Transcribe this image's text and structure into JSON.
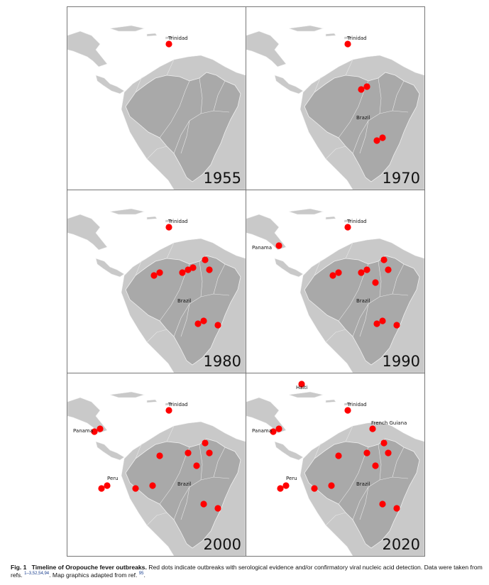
{
  "colors": {
    "background_sea": "#ffffff",
    "land": "#c9c9c9",
    "brazil": "#a9a9a9",
    "border": "#e8e8e8",
    "dot": "#ff0000"
  },
  "panels": [
    {
      "year": "1955",
      "labels": [
        "Trinidad"
      ],
      "outbreak_sites": [
        "Trinidad"
      ]
    },
    {
      "year": "1970",
      "labels": [
        "Trinidad",
        "Brazil"
      ],
      "outbreak_sites": [
        "Trinidad",
        "Pará",
        "Pará",
        "Bahia",
        "Bahia"
      ]
    },
    {
      "year": "1980",
      "labels": [
        "Trinidad",
        "Brazil"
      ],
      "outbreak_sites": [
        "Trinidad",
        "Amazonas",
        "Amazonas",
        "Pará",
        "Pará",
        "Pará",
        "Amapá",
        "Maranhão",
        "Bahia",
        "Bahia",
        "Minas Gerais"
      ]
    },
    {
      "year": "1990",
      "labels": [
        "Trinidad",
        "Panama",
        "Brazil"
      ],
      "outbreak_sites": [
        "Trinidad",
        "Panama",
        "Amazonas",
        "Amazonas",
        "Pará",
        "Pará",
        "Amapá",
        "Maranhão",
        "Tocantins",
        "Bahia",
        "Bahia",
        "Minas Gerais"
      ]
    },
    {
      "year": "2000",
      "labels": [
        "Trinidad",
        "Panama",
        "Peru",
        "Brazil"
      ],
      "outbreak_sites": [
        "Trinidad",
        "Panama",
        "Panama",
        "Peru",
        "Peru",
        "Acre",
        "Rondônia",
        "Amazonas",
        "Pará",
        "Amapá",
        "Maranhão",
        "Tocantins",
        "Bahia",
        "Minas Gerais"
      ]
    },
    {
      "year": "2020",
      "labels": [
        "Haiti",
        "Trinidad",
        "French Guiana",
        "Panama",
        "Peru",
        "Brazil"
      ],
      "outbreak_sites": [
        "Haiti",
        "Trinidad",
        "French Guiana",
        "Panama",
        "Panama",
        "Peru",
        "Peru",
        "Acre",
        "Rondônia",
        "Amazonas",
        "Pará",
        "Amapá",
        "Maranhão",
        "Tocantins",
        "Bahia",
        "Minas Gerais"
      ]
    }
  ],
  "caption": {
    "number": "Fig. 1",
    "title": "Timeline of Oropouche fever outbreaks.",
    "text1": " Red dots indicate outbreaks with serological evidence and/or confirmatory viral nucleic acid detection. Data were taken from refs. ",
    "refs1": "1–3,52,54,94",
    "text2": ". Map graphics adapted from ref. ",
    "refs2": "95",
    "text3": "."
  }
}
